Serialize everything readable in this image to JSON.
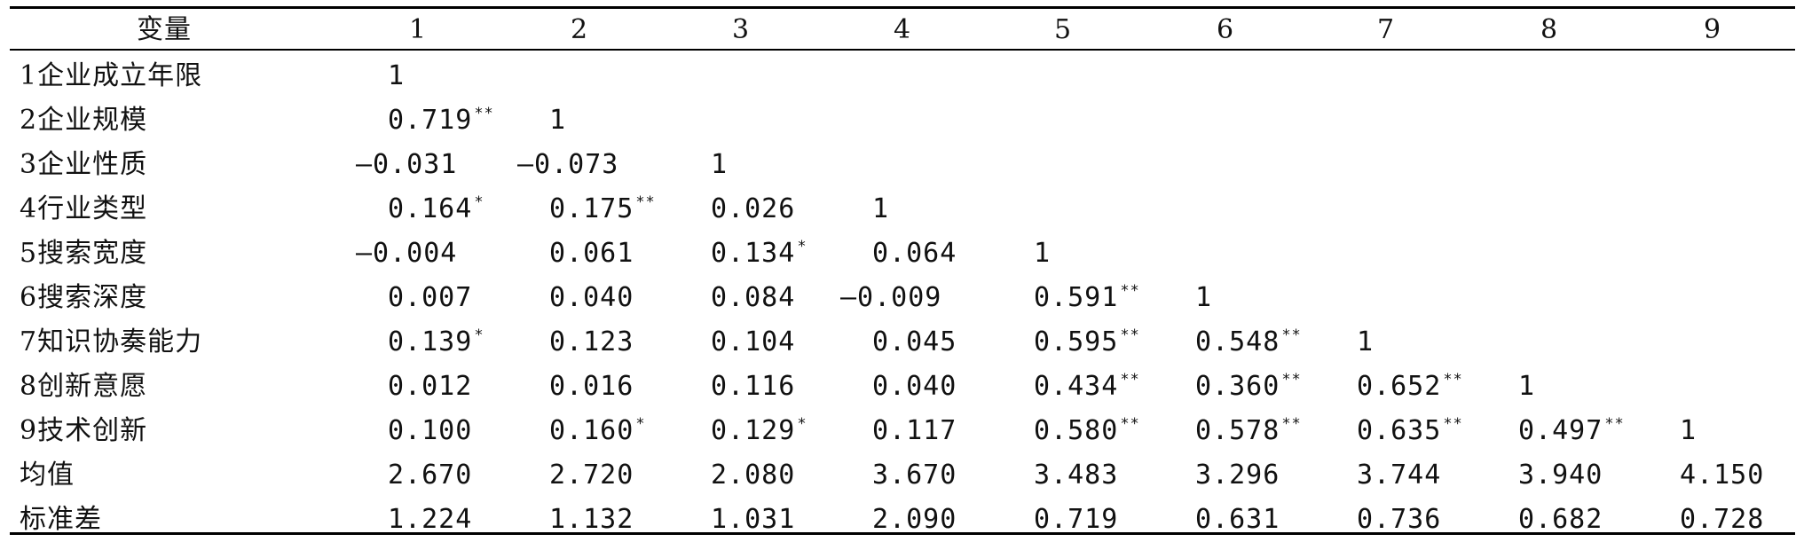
{
  "table": {
    "headers": [
      "变量",
      "1",
      "2",
      "3",
      "4",
      "5",
      "6",
      "7",
      "8",
      "9"
    ],
    "rows": [
      {
        "label": "1企业成立年限",
        "cells": [
          {
            "v": "1",
            "s": ""
          }
        ]
      },
      {
        "label": "2企业规模",
        "cells": [
          {
            "v": "0.719",
            "s": "**"
          },
          {
            "v": "1",
            "s": ""
          }
        ]
      },
      {
        "label": "3企业性质",
        "cells": [
          {
            "v": "—0.031",
            "s": ""
          },
          {
            "v": "—0.073",
            "s": ""
          },
          {
            "v": "1",
            "s": ""
          }
        ]
      },
      {
        "label": "4行业类型",
        "cells": [
          {
            "v": "0.164",
            "s": "*"
          },
          {
            "v": "0.175",
            "s": "**"
          },
          {
            "v": "0.026",
            "s": ""
          },
          {
            "v": "1",
            "s": ""
          }
        ]
      },
      {
        "label": "5搜索宽度",
        "cells": [
          {
            "v": "—0.004",
            "s": ""
          },
          {
            "v": "0.061",
            "s": ""
          },
          {
            "v": "0.134",
            "s": "*"
          },
          {
            "v": "0.064",
            "s": ""
          },
          {
            "v": "1",
            "s": ""
          }
        ]
      },
      {
        "label": "6搜索深度",
        "cells": [
          {
            "v": "0.007",
            "s": ""
          },
          {
            "v": "0.040",
            "s": ""
          },
          {
            "v": "0.084",
            "s": ""
          },
          {
            "v": "—0.009",
            "s": ""
          },
          {
            "v": "0.591",
            "s": "**"
          },
          {
            "v": "1",
            "s": ""
          }
        ]
      },
      {
        "label": "7知识协奏能力",
        "cells": [
          {
            "v": "0.139",
            "s": "*"
          },
          {
            "v": "0.123",
            "s": ""
          },
          {
            "v": "0.104",
            "s": ""
          },
          {
            "v": "0.045",
            "s": ""
          },
          {
            "v": "0.595",
            "s": "**"
          },
          {
            "v": "0.548",
            "s": "**"
          },
          {
            "v": "1",
            "s": ""
          }
        ]
      },
      {
        "label": "8创新意愿",
        "cells": [
          {
            "v": "0.012",
            "s": ""
          },
          {
            "v": "0.016",
            "s": ""
          },
          {
            "v": "0.116",
            "s": ""
          },
          {
            "v": "0.040",
            "s": ""
          },
          {
            "v": "0.434",
            "s": "**"
          },
          {
            "v": "0.360",
            "s": "**"
          },
          {
            "v": "0.652",
            "s": "**"
          },
          {
            "v": "1",
            "s": ""
          }
        ]
      },
      {
        "label": "9技术创新",
        "cells": [
          {
            "v": "0.100",
            "s": ""
          },
          {
            "v": "0.160",
            "s": "*"
          },
          {
            "v": "0.129",
            "s": "*"
          },
          {
            "v": "0.117",
            "s": ""
          },
          {
            "v": "0.580",
            "s": "**"
          },
          {
            "v": "0.578",
            "s": "**"
          },
          {
            "v": "0.635",
            "s": "**"
          },
          {
            "v": "0.497",
            "s": "**"
          },
          {
            "v": "1",
            "s": ""
          }
        ]
      },
      {
        "label": "均值",
        "cells": [
          {
            "v": "2.670",
            "s": ""
          },
          {
            "v": "2.720",
            "s": ""
          },
          {
            "v": "2.080",
            "s": ""
          },
          {
            "v": "3.670",
            "s": ""
          },
          {
            "v": "3.483",
            "s": ""
          },
          {
            "v": "3.296",
            "s": ""
          },
          {
            "v": "3.744",
            "s": ""
          },
          {
            "v": "3.940",
            "s": ""
          },
          {
            "v": "4.150",
            "s": ""
          }
        ]
      },
      {
        "label": "标准差",
        "cells": [
          {
            "v": "1.224",
            "s": ""
          },
          {
            "v": "1.132",
            "s": ""
          },
          {
            "v": "1.031",
            "s": ""
          },
          {
            "v": "2.090",
            "s": ""
          },
          {
            "v": "0.719",
            "s": ""
          },
          {
            "v": "0.631",
            "s": ""
          },
          {
            "v": "0.736",
            "s": ""
          },
          {
            "v": "0.682",
            "s": ""
          },
          {
            "v": "0.728",
            "s": ""
          }
        ]
      }
    ]
  }
}
